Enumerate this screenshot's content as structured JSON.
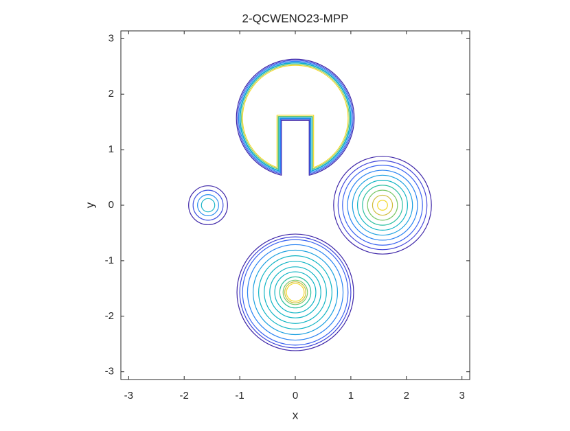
{
  "chart_data": {
    "type": "contour",
    "title": "2-QCWENO23-MPP",
    "x_label": "x",
    "y_label": "y",
    "xlim": [
      -3.14,
      3.14
    ],
    "ylim": [
      -3.14,
      3.14
    ],
    "xticks": [
      -3,
      -2,
      -1,
      0,
      1,
      2,
      3
    ],
    "yticks": [
      -3,
      -2,
      -1,
      0,
      1,
      2,
      3
    ],
    "circles": [
      {
        "center": [
          -1.57,
          0
        ],
        "radii": [
          0.35,
          0.27,
          0.19,
          0.12
        ],
        "colors": [
          "#3e26a8",
          "#4355e0",
          "#2a8ef0",
          "#17b4c8"
        ]
      },
      {
        "center": [
          1.57,
          0
        ],
        "radii": [
          0.88,
          0.8,
          0.72,
          0.63,
          0.54,
          0.45,
          0.36,
          0.27,
          0.18,
          0.09
        ],
        "colors": [
          "#3e26a8",
          "#4245d8",
          "#3a63f0",
          "#2a83f2",
          "#1ca0e0",
          "#10b4c4",
          "#2bbfa0",
          "#7cc86a",
          "#d0bd3c",
          "#f2d82a"
        ]
      },
      {
        "center": [
          0,
          -1.57
        ],
        "radii": [
          1.05,
          1.0,
          0.95,
          0.86,
          0.76,
          0.66,
          0.56,
          0.46,
          0.37,
          0.28,
          0.22,
          0.19,
          0.16
        ],
        "colors": [
          "#3e26a8",
          "#4245d8",
          "#3a63f0",
          "#2a83f2",
          "#1ca0e0",
          "#10b4c4",
          "#10b4c4",
          "#10b4c4",
          "#10b4c4",
          "#2bbfa0",
          "#7cc86a",
          "#d0bd3c",
          "#f2d82a"
        ]
      }
    ],
    "slotted_disk": {
      "center": [
        0,
        1.57
      ],
      "radii": [
        1.06,
        1.04,
        1.02,
        1.0,
        0.99,
        0.97,
        0.95
      ],
      "slot_half_widths": [
        0.25,
        0.26,
        0.27,
        0.28,
        0.3,
        0.31,
        0.33
      ],
      "slot_tops": [
        1.53,
        1.55,
        1.56,
        1.57,
        1.59,
        1.6,
        1.62
      ],
      "colors": [
        "#3e26a8",
        "#4355e0",
        "#2a83f2",
        "#1ca0e0",
        "#10b4c4",
        "#7cc86a",
        "#f2d82a"
      ]
    }
  }
}
